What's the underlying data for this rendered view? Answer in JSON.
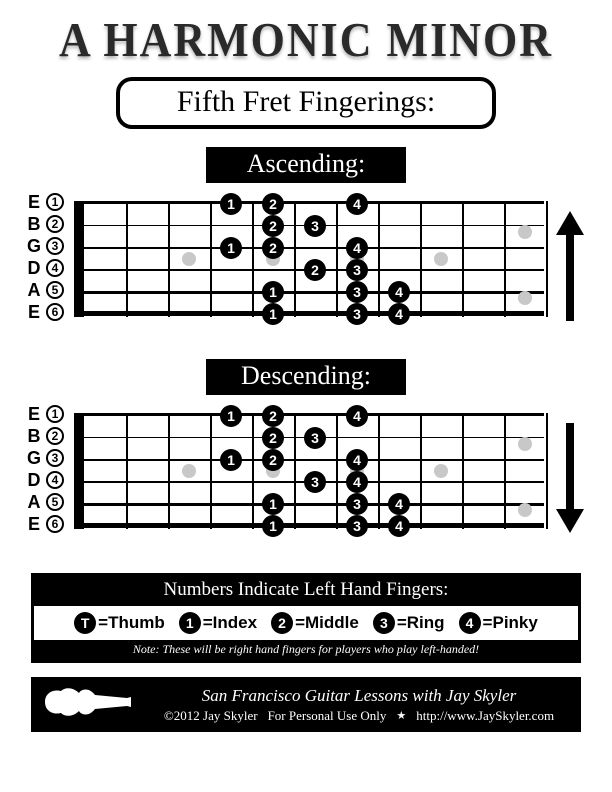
{
  "title": "A HARMONIC MINOR",
  "subtitle": "Fifth Fret Fingerings:",
  "sections": {
    "ascending": {
      "label": "Ascending:",
      "arrow_dir": "up"
    },
    "descending": {
      "label": "Descending:",
      "arrow_dir": "down"
    }
  },
  "fretboard": {
    "strings": [
      "E",
      "B",
      "G",
      "D",
      "A",
      "E"
    ],
    "string_nums": [
      "1",
      "2",
      "3",
      "4",
      "5",
      "6"
    ],
    "num_frets": 11,
    "fret_width": 42,
    "nut_width": 10,
    "string_spacing": 22,
    "line_thickness": [
      1,
      1,
      2,
      2,
      3,
      3
    ],
    "inlay_frets": [
      3,
      5,
      7,
      9
    ],
    "double_inlay_fret": null,
    "inlay_color": "#c8c8c8",
    "dot_bg": "#000000",
    "dot_fg": "#ffffff"
  },
  "ascending_dots": [
    {
      "string": 1,
      "fret": 4,
      "finger": "1"
    },
    {
      "string": 1,
      "fret": 5,
      "finger": "2"
    },
    {
      "string": 1,
      "fret": 7,
      "finger": "4"
    },
    {
      "string": 2,
      "fret": 5,
      "finger": "2"
    },
    {
      "string": 2,
      "fret": 6,
      "finger": "3"
    },
    {
      "string": 3,
      "fret": 4,
      "finger": "1"
    },
    {
      "string": 3,
      "fret": 5,
      "finger": "2"
    },
    {
      "string": 3,
      "fret": 7,
      "finger": "4"
    },
    {
      "string": 4,
      "fret": 6,
      "finger": "2"
    },
    {
      "string": 4,
      "fret": 7,
      "finger": "3"
    },
    {
      "string": 5,
      "fret": 5,
      "finger": "1"
    },
    {
      "string": 5,
      "fret": 7,
      "finger": "3"
    },
    {
      "string": 5,
      "fret": 8,
      "finger": "4"
    },
    {
      "string": 6,
      "fret": 5,
      "finger": "1"
    },
    {
      "string": 6,
      "fret": 7,
      "finger": "3"
    },
    {
      "string": 6,
      "fret": 8,
      "finger": "4"
    }
  ],
  "descending_dots": [
    {
      "string": 1,
      "fret": 4,
      "finger": "1"
    },
    {
      "string": 1,
      "fret": 5,
      "finger": "2"
    },
    {
      "string": 1,
      "fret": 7,
      "finger": "4"
    },
    {
      "string": 2,
      "fret": 5,
      "finger": "2"
    },
    {
      "string": 2,
      "fret": 6,
      "finger": "3"
    },
    {
      "string": 3,
      "fret": 4,
      "finger": "1"
    },
    {
      "string": 3,
      "fret": 5,
      "finger": "2"
    },
    {
      "string": 3,
      "fret": 7,
      "finger": "4"
    },
    {
      "string": 4,
      "fret": 6,
      "finger": "3"
    },
    {
      "string": 4,
      "fret": 7,
      "finger": "4"
    },
    {
      "string": 5,
      "fret": 5,
      "finger": "1"
    },
    {
      "string": 5,
      "fret": 7,
      "finger": "3"
    },
    {
      "string": 5,
      "fret": 8,
      "finger": "4"
    },
    {
      "string": 6,
      "fret": 5,
      "finger": "1"
    },
    {
      "string": 6,
      "fret": 7,
      "finger": "3"
    },
    {
      "string": 6,
      "fret": 8,
      "finger": "4"
    }
  ],
  "legend": {
    "header": "Numbers Indicate Left Hand Fingers:",
    "items": [
      {
        "sym": "T",
        "label": "=Thumb"
      },
      {
        "sym": "1",
        "label": "=Index"
      },
      {
        "sym": "2",
        "label": "=Middle"
      },
      {
        "sym": "3",
        "label": "=Ring"
      },
      {
        "sym": "4",
        "label": "=Pinky"
      }
    ],
    "note": "Note: These will be right hand fingers for players who play left-handed!"
  },
  "footer": {
    "line1": "San Francisco Guitar Lessons with Jay Skyler",
    "copyright": "©2012 Jay Skyler",
    "usage": "For Personal Use Only",
    "url": "http://www.JaySkyler.com"
  }
}
